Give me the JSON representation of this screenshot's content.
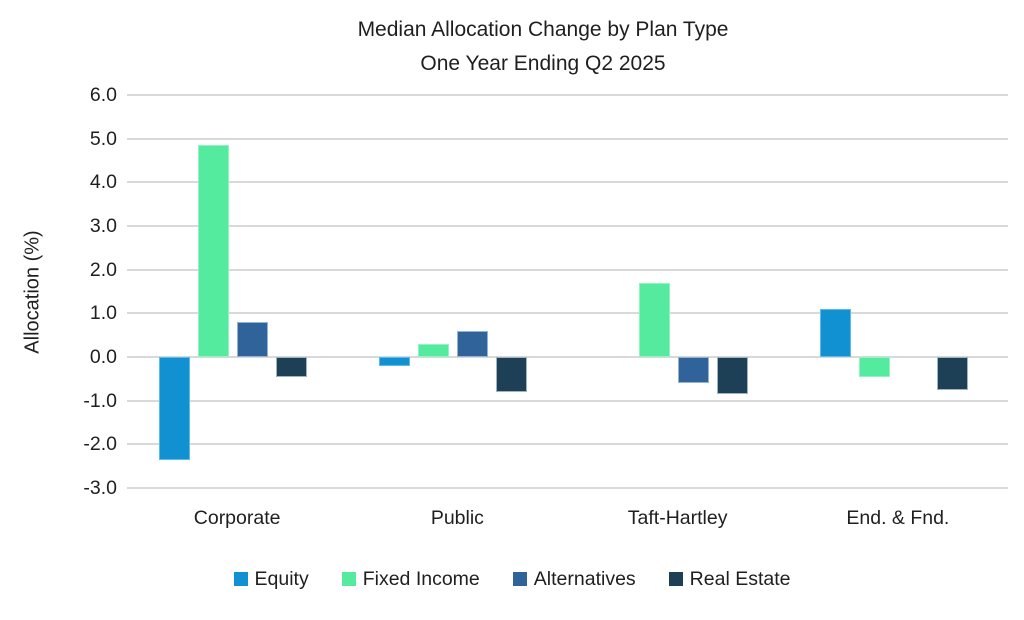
{
  "chart_data": {
    "type": "bar",
    "title": "Median Allocation Change by Plan Type",
    "subtitle": "One Year Ending Q2 2025",
    "ylabel": "Allocation (%)",
    "categories": [
      "Corporate",
      "Public",
      "Taft-Hartley",
      "End. & Fnd."
    ],
    "series": [
      {
        "name": "Equity",
        "color": "#1191D2",
        "border": "#5CBCE8",
        "values": [
          -2.35,
          -0.2,
          0.0,
          1.1
        ]
      },
      {
        "name": "Fixed Income",
        "color": "#54EB9E",
        "border": "#90F4C3",
        "values": [
          4.85,
          0.3,
          1.7,
          -0.45
        ]
      },
      {
        "name": "Alternatives",
        "color": "#2F6399",
        "border": "#92B4D2",
        "values": [
          0.8,
          0.6,
          -0.6,
          0.0
        ]
      },
      {
        "name": "Real Estate",
        "color": "#1E4056",
        "border": "#9DB4C1",
        "values": [
          -0.45,
          -0.8,
          -0.85,
          -0.75
        ]
      }
    ],
    "ylim": [
      -3.0,
      6.0
    ],
    "ytick_step": 1.0,
    "yticks": [
      "6.0",
      "5.0",
      "4.0",
      "3.0",
      "2.0",
      "1.0",
      "0.0",
      "-1.0",
      "-2.0",
      "-3.0"
    ],
    "grid": true,
    "legend_position": "bottom"
  },
  "colors": {
    "background": "#FFFFFF",
    "gridline": "#D9D9D9",
    "text": "#1F1F1F"
  }
}
